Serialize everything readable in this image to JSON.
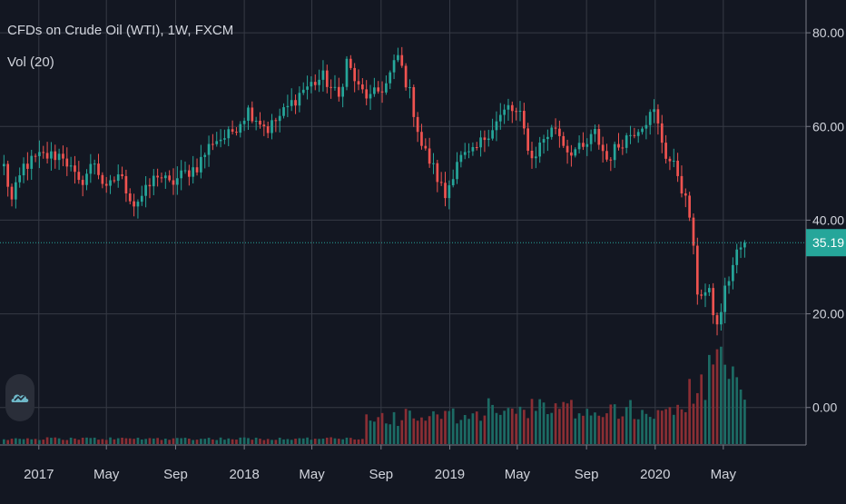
{
  "header": {
    "title": "CFDs on Crude Oil (WTI), 1W, FXCM",
    "indicator": "Vol (20)"
  },
  "colors": {
    "background": "#131722",
    "grid": "#363a45",
    "text": "#d1d4dc",
    "up": "#26a69a",
    "down": "#ef5350",
    "vol_up": "#1c6b64",
    "vol_down": "#8a2e34",
    "price_line": "#26a69a"
  },
  "logo": {
    "icon": "tradingview-cloud-icon"
  },
  "chart_data": {
    "type": "candlestick",
    "symbol": "CFDs on Crude Oil (WTI)",
    "interval": "1W",
    "source": "FXCM",
    "y_axis": {
      "ticks": [
        {
          "value": 80,
          "label": "80.00"
        },
        {
          "value": 60,
          "label": "60.00"
        },
        {
          "value": 40,
          "label": "40.00"
        },
        {
          "value": 20,
          "label": "20.00"
        },
        {
          "value": 0,
          "label": "0.00"
        }
      ],
      "range": [
        -8,
        87
      ]
    },
    "x_axis": {
      "ticks": [
        {
          "date": "2017-01-01",
          "label": "2017"
        },
        {
          "date": "2017-05-01",
          "label": "May"
        },
        {
          "date": "2017-09-01",
          "label": "Sep"
        },
        {
          "date": "2018-01-01",
          "label": "2018"
        },
        {
          "date": "2018-05-01",
          "label": "May"
        },
        {
          "date": "2018-09-01",
          "label": "Sep"
        },
        {
          "date": "2019-01-01",
          "label": "2019"
        },
        {
          "date": "2019-05-01",
          "label": "May"
        },
        {
          "date": "2019-09-01",
          "label": "Sep"
        },
        {
          "date": "2020-01-01",
          "label": "2020"
        },
        {
          "date": "2020-05-01",
          "label": "May"
        }
      ],
      "range": [
        "2016-10-24",
        "2020-09-25"
      ]
    },
    "last_price": {
      "value": 35.19,
      "label": "35.19"
    },
    "volume_axis": {
      "max": 100
    },
    "close_path": [
      [
        "2016-10-31",
        51.5
      ],
      [
        "2016-11-14",
        44
      ],
      [
        "2016-12-05",
        51.5
      ],
      [
        "2017-01-02",
        53.5
      ],
      [
        "2017-02-13",
        54
      ],
      [
        "2017-03-13",
        47.5
      ],
      [
        "2017-04-10",
        52.5
      ],
      [
        "2017-05-01",
        46
      ],
      [
        "2017-05-22",
        50
      ],
      [
        "2017-06-19",
        43.5
      ],
      [
        "2017-07-10",
        46
      ],
      [
        "2017-07-31",
        50
      ],
      [
        "2017-08-21",
        47.5
      ],
      [
        "2017-09-11",
        49.5
      ],
      [
        "2017-10-09",
        51.5
      ],
      [
        "2017-11-06",
        57
      ],
      [
        "2017-12-04",
        58
      ],
      [
        "2018-01-08",
        63.5
      ],
      [
        "2018-02-12",
        59.5
      ],
      [
        "2018-03-12",
        63
      ],
      [
        "2018-04-16",
        68
      ],
      [
        "2018-05-21",
        70.5
      ],
      [
        "2018-06-18",
        66
      ],
      [
        "2018-07-02",
        74
      ],
      [
        "2018-07-23",
        68
      ],
      [
        "2018-08-13",
        66
      ],
      [
        "2018-09-10",
        69
      ],
      [
        "2018-10-01",
        75
      ],
      [
        "2018-10-22",
        67
      ],
      [
        "2018-11-12",
        56
      ],
      [
        "2018-12-03",
        51
      ],
      [
        "2018-12-24",
        45
      ],
      [
        "2019-01-14",
        53
      ],
      [
        "2019-02-11",
        54
      ],
      [
        "2019-03-11",
        59
      ],
      [
        "2019-04-15",
        64
      ],
      [
        "2019-05-06",
        62
      ],
      [
        "2019-05-27",
        53
      ],
      [
        "2019-06-17",
        57.5
      ],
      [
        "2019-07-08",
        60
      ],
      [
        "2019-07-29",
        55
      ],
      [
        "2019-08-26",
        55
      ],
      [
        "2019-09-16",
        58.5
      ],
      [
        "2019-10-07",
        53
      ],
      [
        "2019-11-04",
        57
      ],
      [
        "2019-12-02",
        60
      ],
      [
        "2019-12-30",
        63
      ],
      [
        "2020-01-20",
        54
      ],
      [
        "2020-02-10",
        50
      ],
      [
        "2020-03-02",
        41
      ],
      [
        "2020-03-16",
        25
      ],
      [
        "2020-04-06",
        24
      ],
      [
        "2020-04-20",
        17
      ],
      [
        "2020-05-04",
        25
      ],
      [
        "2020-05-25",
        33
      ],
      [
        "2020-06-08",
        35.19
      ]
    ]
  }
}
